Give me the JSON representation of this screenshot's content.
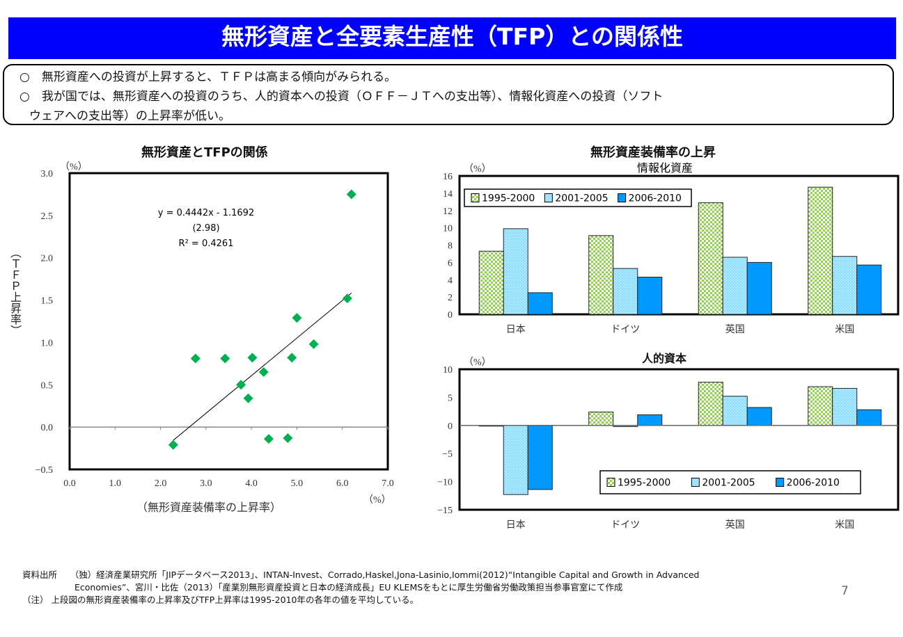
{
  "header": {
    "title": "無形資産と全要素生産性（TFP）との関係性"
  },
  "summary": {
    "bullet": "○",
    "line1": "無形資産への投資が上昇すると、ＴＦＰは高まる傾向がみられる。",
    "line2": "我が国では、無形資産への投資のうち、人的資本への投資（ＯＦＦ－ＪＴへの支出等）、情報化資産への投資（ソフト",
    "line3": "ウェアへの支出等）の上昇率が低い。"
  },
  "chart_data": [
    {
      "type": "scatter",
      "title": "無形資産とTFPの関係",
      "xlabel": "（無形資産装備率の上昇率）",
      "ylabel": "（ＴＦＰ上昇率）",
      "x_unit": "（%）",
      "y_unit": "（%）",
      "xlim": [
        0,
        7
      ],
      "ylim": [
        -0.5,
        3.0
      ],
      "x_ticks": [
        "0.0",
        "1.0",
        "2.0",
        "3.0",
        "4.0",
        "5.0",
        "6.0",
        "7.0"
      ],
      "y_ticks": [
        "3.0",
        "2.5",
        "2.0",
        "1.5",
        "1.0",
        "0.5",
        "0.0",
        "−0.5"
      ],
      "points": [
        [
          6.2,
          2.75
        ],
        [
          6.11,
          1.52
        ],
        [
          5.0,
          1.29
        ],
        [
          5.37,
          0.98
        ],
        [
          4.89,
          0.82
        ],
        [
          2.77,
          0.81
        ],
        [
          3.42,
          0.81
        ],
        [
          4.02,
          0.82
        ],
        [
          4.27,
          0.65
        ],
        [
          3.77,
          0.5
        ],
        [
          3.93,
          0.34
        ],
        [
          4.38,
          -0.14
        ],
        [
          4.8,
          -0.13
        ],
        [
          2.28,
          -0.21
        ]
      ],
      "trendline": {
        "slope": 0.4442,
        "intercept": -1.1692,
        "x_range": [
          2.28,
          6.2
        ]
      },
      "annotation": [
        "y = 0.4442x - 1.1692",
        "(2.98)",
        "R² = 0.4261"
      ],
      "marker_color": "#00b050"
    },
    {
      "type": "bar",
      "title": "無形資産装備率の上昇",
      "subtitle": "情報化資産",
      "y_unit": "（%）",
      "ylim": [
        0,
        16
      ],
      "y_ticks": [
        "0",
        "2",
        "4",
        "6",
        "8",
        "10",
        "12",
        "14",
        "16"
      ],
      "categories": [
        "日本",
        "ドイツ",
        "英国",
        "米国"
      ],
      "legend_position": "top-left",
      "series": [
        {
          "name": "1995-2000",
          "values": [
            7.3,
            9.1,
            12.9,
            14.7
          ],
          "color": "#92d050"
        },
        {
          "name": "2001-2005",
          "values": [
            9.9,
            5.3,
            6.6,
            6.7
          ],
          "color": "#99ddff"
        },
        {
          "name": "2006-2010",
          "values": [
            2.5,
            4.3,
            6.0,
            5.7
          ],
          "color": "#0099ff"
        }
      ]
    },
    {
      "type": "bar",
      "subtitle": "人的資本",
      "y_unit": "（%）",
      "ylim": [
        -15,
        10
      ],
      "y_ticks": [
        "10",
        "5",
        "0",
        "−5",
        "−10",
        "−15"
      ],
      "categories": [
        "日本",
        "ドイツ",
        "英国",
        "米国"
      ],
      "legend_position": "bottom-right",
      "series": [
        {
          "name": "1995-2000",
          "values": [
            -0.1,
            2.4,
            7.7,
            6.9
          ],
          "color": "#92d050"
        },
        {
          "name": "2001-2005",
          "values": [
            -12.3,
            -0.2,
            5.2,
            6.6
          ],
          "color": "#99ddff"
        },
        {
          "name": "2006-2010",
          "values": [
            -11.4,
            1.9,
            3.2,
            2.8
          ],
          "color": "#0099ff"
        }
      ]
    }
  ],
  "footer": {
    "source_label": "資料出所",
    "source_line1": "（独）経済産業研究所「JIPデータベース2013」、INTAN-Invest、Corrado,Haskel,Jona-Lasinio,Iommi(2012)“Intangible Capital and Growth in Advanced",
    "source_line2": "Economies”、宮川・比佐（2013）「産業別無形資産投資と日本の経済成長」EU KLEMSをもとに厚生労働省労働政策担当参事官室にて作成",
    "note": "（注） 上段図の無形資産装備率の上昇率及びTFP上昇率は1995-2010年の各年の値を平均している。"
  },
  "page_number": "7"
}
